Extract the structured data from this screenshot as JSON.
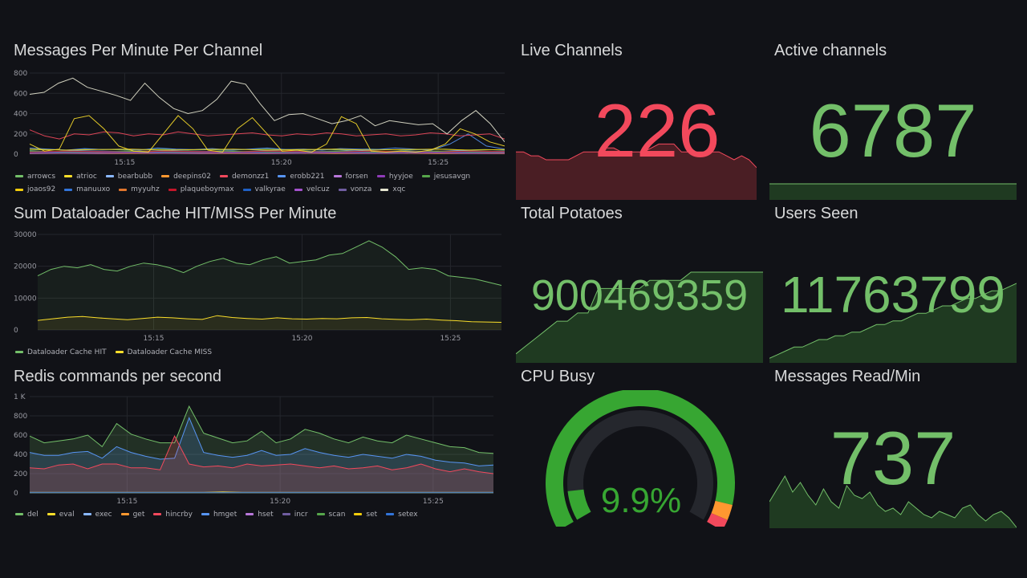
{
  "colors": {
    "bg": "#111217",
    "grid": "#24262c",
    "green": "#73bf69",
    "red": "#f2495c",
    "yellow": "#fade2a",
    "blue": "#5794f2",
    "orange": "#ff9830",
    "gauge_track": "#25272d",
    "gauge_green": "#37a632"
  },
  "messages_panel": {
    "title": "Messages Per Minute Per Channel",
    "chart_data": {
      "type": "line",
      "y_ticks": [
        "800",
        "600",
        "400",
        "200",
        "0"
      ],
      "ylim": [
        0,
        800
      ],
      "xlim": [
        0,
        100
      ],
      "x_ticks": [
        {
          "x": 20,
          "label": "15:15"
        },
        {
          "x": 53,
          "label": "15:20"
        },
        {
          "x": 86,
          "label": "15:25"
        }
      ],
      "series": [
        {
          "name": "arrowcs",
          "color": "#73bf69",
          "values": [
            40,
            45,
            40,
            50,
            45,
            40,
            45,
            50,
            40,
            45,
            40,
            45,
            50,
            45,
            40,
            45,
            40,
            50,
            45,
            40,
            45,
            50,
            40,
            45,
            40
          ]
        },
        {
          "name": "atrioc",
          "color": "#fade2a",
          "values": [
            100,
            30,
            50,
            350,
            380,
            250,
            80,
            30,
            20,
            200,
            380,
            250,
            40,
            20,
            250,
            360,
            200,
            30,
            40,
            20,
            100,
            370,
            300,
            30,
            20,
            30,
            20,
            40,
            100,
            250,
            200,
            120,
            80
          ]
        },
        {
          "name": "bearbubb",
          "color": "#8ab8ff",
          "values": [
            30,
            25,
            35,
            30,
            25,
            30,
            35,
            25,
            30,
            25,
            35,
            30,
            25,
            30,
            35,
            25,
            30,
            25,
            35,
            30,
            25
          ]
        },
        {
          "name": "deepins02",
          "color": "#ff9830",
          "values": [
            20,
            25,
            20,
            30,
            25,
            20,
            25,
            30,
            20,
            25,
            20,
            30,
            25,
            20
          ]
        },
        {
          "name": "demonzz1",
          "color": "#f2495c",
          "values": [
            240,
            180,
            150,
            200,
            190,
            220,
            210,
            180,
            200,
            190,
            220,
            200,
            180,
            190,
            200,
            210,
            190,
            180,
            200,
            190,
            210,
            200,
            180,
            190,
            200,
            180,
            190,
            210,
            200,
            180,
            190,
            200,
            150
          ]
        },
        {
          "name": "erobb221",
          "color": "#5794f2",
          "values": [
            60,
            50,
            40,
            55,
            45,
            50,
            40,
            60,
            50,
            45,
            55,
            40,
            50,
            60,
            45,
            50,
            40,
            55,
            50,
            45,
            60,
            50,
            40,
            100,
            200,
            80,
            50
          ]
        },
        {
          "name": "forsen",
          "color": "#b877d9",
          "values": [
            10,
            15,
            10,
            12,
            15,
            10,
            12,
            10,
            15,
            10,
            12,
            15,
            10,
            12,
            10
          ]
        },
        {
          "name": "hyyjoe",
          "color": "#8f3bb8",
          "values": [
            15,
            20,
            15,
            18,
            20,
            15,
            18,
            15,
            20,
            15,
            18,
            20,
            15,
            18,
            15
          ]
        },
        {
          "name": "jesusavgn",
          "color": "#56a64b",
          "values": [
            30,
            20,
            25,
            30,
            20,
            25,
            30,
            20,
            25,
            30,
            20,
            25,
            30,
            20,
            25
          ]
        },
        {
          "name": "joaos92",
          "color": "#f2cc0c",
          "values": [
            50,
            40,
            45,
            50,
            40,
            45,
            50,
            40,
            45,
            50,
            40,
            45,
            50,
            40,
            45
          ]
        },
        {
          "name": "manuuxo",
          "color": "#3274d9",
          "values": [
            20,
            25,
            30,
            20,
            25,
            30,
            20,
            25,
            30,
            20,
            25,
            30,
            20,
            25,
            30
          ]
        },
        {
          "name": "myyuhz",
          "color": "#e0752d",
          "values": [
            5,
            8,
            5,
            6,
            8,
            5,
            6,
            5,
            8,
            5,
            6,
            8,
            5,
            6,
            5
          ]
        },
        {
          "name": "plaqueboymax",
          "color": "#c4162a",
          "values": [
            20,
            30,
            25,
            20,
            30,
            25,
            20,
            30,
            25,
            20,
            30,
            25,
            20,
            30,
            25
          ]
        },
        {
          "name": "valkyrae",
          "color": "#1f60c4",
          "values": [
            10,
            12,
            10,
            15,
            12,
            10,
            15,
            10,
            12,
            15,
            10,
            12,
            15,
            10,
            12
          ]
        },
        {
          "name": "velcuz",
          "color": "#a352cc",
          "values": [
            8,
            10,
            8,
            12,
            10,
            8,
            12,
            8,
            10,
            12,
            8,
            10,
            12,
            8,
            10
          ]
        },
        {
          "name": "vonza",
          "color": "#705da0",
          "values": [
            12,
            15,
            12,
            18,
            15,
            12,
            18,
            12,
            15,
            18,
            12,
            15,
            18,
            12,
            15
          ]
        },
        {
          "name": "xqc",
          "color": "#e5e5d0",
          "values": [
            590,
            610,
            700,
            750,
            660,
            620,
            580,
            530,
            700,
            560,
            450,
            400,
            430,
            540,
            720,
            690,
            500,
            330,
            390,
            400,
            350,
            300,
            330,
            380,
            280,
            330,
            310,
            290,
            300,
            200,
            330,
            430,
            300,
            120
          ]
        }
      ]
    }
  },
  "cache_panel": {
    "title": "Sum Dataloader Cache HIT/MISS Per Minute",
    "chart_data": {
      "type": "area",
      "y_ticks": [
        "30000",
        "20000",
        "10000",
        "0"
      ],
      "ylim": [
        0,
        30000
      ],
      "xlim": [
        0,
        100
      ],
      "x_ticks": [
        {
          "x": 25,
          "label": "15:15"
        },
        {
          "x": 57,
          "label": "15:20"
        },
        {
          "x": 89,
          "label": "15:25"
        }
      ],
      "series": [
        {
          "name": "Dataloader Cache HIT",
          "color": "#73bf69",
          "values": [
            17000,
            19000,
            20000,
            19500,
            20500,
            19000,
            18500,
            20000,
            21000,
            20500,
            19500,
            18000,
            20000,
            21500,
            22500,
            21000,
            20500,
            22000,
            23000,
            21000,
            21500,
            22000,
            23500,
            24000,
            26000,
            28000,
            26000,
            23000,
            19000,
            19500,
            19000,
            17000,
            16500,
            16000,
            15000,
            14000
          ]
        },
        {
          "name": "Dataloader Cache MISS",
          "color": "#fade2a",
          "values": [
            3000,
            3500,
            4000,
            4200,
            3800,
            3500,
            3200,
            3600,
            4000,
            3800,
            3500,
            3300,
            4500,
            3900,
            3600,
            3400,
            3800,
            3500,
            3400,
            3600,
            3500,
            3800,
            3900,
            3500,
            3300,
            3200,
            3400,
            3100,
            2900,
            2600,
            2500,
            2400
          ]
        }
      ]
    }
  },
  "redis_panel": {
    "title": "Redis commands per second",
    "chart_data": {
      "type": "area",
      "y_ticks": [
        "1 K",
        "800",
        "600",
        "400",
        "200",
        "0"
      ],
      "ylim": [
        0,
        1000
      ],
      "xlim": [
        0,
        100
      ],
      "x_ticks": [
        {
          "x": 21,
          "label": "15:15"
        },
        {
          "x": 54,
          "label": "15:20"
        },
        {
          "x": 87,
          "label": "15:25"
        }
      ],
      "series": [
        {
          "name": "del",
          "color": "#73bf69",
          "values": [
            590,
            520,
            540,
            560,
            600,
            480,
            720,
            610,
            560,
            520,
            520,
            900,
            620,
            570,
            520,
            540,
            640,
            520,
            560,
            660,
            620,
            560,
            520,
            580,
            540,
            520,
            600,
            560,
            520,
            480,
            470,
            420,
            410
          ]
        },
        {
          "name": "eval",
          "color": "#fade2a",
          "values": [
            5,
            5,
            5,
            5,
            5,
            5,
            5,
            5,
            5,
            5,
            10,
            5,
            5,
            5,
            5,
            5,
            5,
            5,
            5,
            5,
            5,
            5,
            5,
            5,
            5
          ]
        },
        {
          "name": "exec",
          "color": "#8ab8ff",
          "values": [
            5,
            5,
            5,
            5,
            5,
            5,
            5,
            5,
            5,
            5,
            5,
            5,
            5,
            5,
            5,
            5,
            5,
            5,
            5
          ]
        },
        {
          "name": "get",
          "color": "#ff9830",
          "values": [
            2,
            2,
            2,
            2,
            2,
            2,
            2,
            2,
            2,
            2,
            2,
            2
          ]
        },
        {
          "name": "hincrby",
          "color": "#f2495c",
          "values": [
            260,
            250,
            290,
            300,
            250,
            300,
            300,
            260,
            260,
            240,
            590,
            300,
            270,
            280,
            260,
            300,
            280,
            290,
            300,
            280,
            260,
            280,
            250,
            260,
            280,
            240,
            260,
            300,
            250,
            220,
            250,
            220,
            200
          ]
        },
        {
          "name": "hmget",
          "color": "#5794f2",
          "values": [
            420,
            390,
            390,
            420,
            430,
            360,
            480,
            420,
            380,
            350,
            360,
            780,
            420,
            390,
            370,
            390,
            440,
            390,
            400,
            460,
            420,
            390,
            370,
            400,
            380,
            360,
            400,
            380,
            340,
            320,
            310,
            280,
            290
          ]
        },
        {
          "name": "hset",
          "color": "#b877d9",
          "values": [
            3,
            3,
            3,
            3,
            3,
            3,
            3,
            3,
            3,
            3,
            3,
            3
          ]
        },
        {
          "name": "incr",
          "color": "#705da0",
          "values": [
            3,
            3,
            3,
            3,
            3,
            3,
            3,
            3,
            3,
            3,
            3,
            3
          ]
        },
        {
          "name": "scan",
          "color": "#56a64b",
          "values": [
            2,
            2,
            2,
            2,
            2,
            2,
            2,
            2,
            2,
            2,
            2,
            2
          ]
        },
        {
          "name": "set",
          "color": "#f2cc0c",
          "values": [
            2,
            2,
            2,
            2,
            2,
            2,
            2,
            2,
            2,
            2,
            2,
            2
          ]
        },
        {
          "name": "setex",
          "color": "#3274d9",
          "values": [
            2,
            2,
            2,
            2,
            2,
            2,
            2,
            2,
            2,
            2,
            2,
            2
          ]
        }
      ]
    }
  },
  "stats": {
    "live_channels": {
      "title": "Live Channels",
      "value": "226",
      "color": "#f2495c",
      "fill": "#4a1e24",
      "spark": [
        12,
        12,
        11,
        11,
        10,
        10,
        10,
        10,
        11,
        12,
        12,
        12,
        13,
        13,
        12,
        12,
        12,
        12,
        13,
        14,
        14,
        14,
        12,
        12,
        12,
        12,
        12,
        12,
        11,
        10,
        11,
        10,
        8
      ],
      "spark_min": 0,
      "spark_max": 20
    },
    "active_channels": {
      "title": "Active channels",
      "value": "6787",
      "color": "#73bf69",
      "fill": "#1f3a21",
      "spark": [
        6787,
        6787,
        6787,
        6787,
        6787,
        6787,
        6787,
        6787,
        6787,
        6787
      ],
      "spark_min": 0,
      "spark_max": 10000
    },
    "total_potatoes": {
      "title": "Total Potatoes",
      "value": "900469359",
      "color": "#73bf69",
      "fill": "#1f3a21",
      "spark": [
        0,
        1,
        2,
        3,
        4,
        4,
        5,
        5,
        8,
        8,
        8,
        8,
        8,
        9,
        9,
        9,
        9,
        10,
        10,
        10,
        10,
        10,
        10,
        10,
        10
      ],
      "spark_min": -1,
      "spark_max": 10
    },
    "users_seen": {
      "title": "Users Seen",
      "value": "11763799",
      "color": "#73bf69",
      "fill": "#1f3a21",
      "spark": [
        0,
        1,
        2,
        3,
        3,
        4,
        5,
        5,
        6,
        6,
        7,
        7,
        8,
        9,
        9,
        10,
        10,
        11,
        12,
        12,
        13,
        14,
        14,
        15,
        16,
        16,
        17,
        18,
        18,
        19,
        20
      ],
      "spark_min": -1,
      "spark_max": 20
    },
    "messages_read": {
      "title": "Messages Read/Min",
      "value": "737",
      "color": "#73bf69",
      "fill": "#1f3a21",
      "spark": [
        40,
        60,
        80,
        55,
        70,
        50,
        35,
        60,
        40,
        30,
        65,
        50,
        45,
        55,
        35,
        25,
        30,
        20,
        40,
        30,
        20,
        15,
        25,
        20,
        15,
        30,
        35,
        20,
        10,
        20,
        25,
        15,
        0
      ],
      "spark_min": 0,
      "spark_max": 100
    }
  },
  "cpu_panel": {
    "title": "CPU Busy",
    "value": "9.9%",
    "percent": 9.9
  }
}
